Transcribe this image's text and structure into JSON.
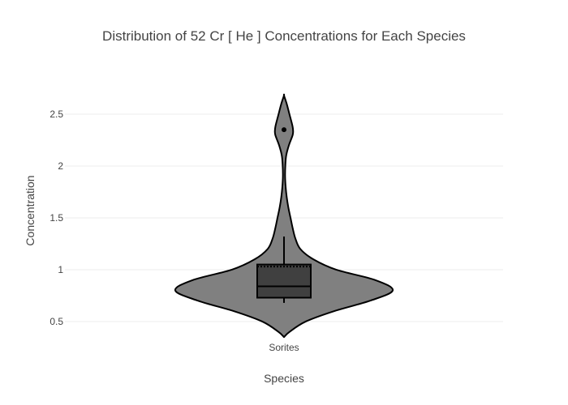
{
  "chart_data": {
    "type": "violin",
    "title": "Distribution of 52  Cr  [ He ]  Concentrations for Each Species",
    "xlabel": "Species",
    "ylabel": "Concentration",
    "categories": [
      "Sorites"
    ],
    "ylim": [
      0.32,
      2.82
    ],
    "yticks": [
      0.5,
      1,
      1.5,
      2,
      2.5
    ],
    "ytick_labels": [
      "0.5",
      "1",
      "1.5",
      "2",
      "2.5"
    ],
    "grid": true,
    "legend": "none",
    "colors": {
      "violin_fill": "#808080",
      "box_fill": "#404040",
      "line": "#000000",
      "grid": "#eeeeee",
      "text": "#444444"
    },
    "series": [
      {
        "category": "Sorites",
        "min": 0.68,
        "q1": 0.73,
        "median": 0.84,
        "q3": 1.05,
        "mean": 1.03,
        "upper_whisker": 1.32,
        "outliers": [
          2.35
        ],
        "range": [
          0.35,
          2.68
        ],
        "density_profile": [
          [
            0.35,
            0.0
          ],
          [
            0.4,
            0.05
          ],
          [
            0.5,
            0.2
          ],
          [
            0.6,
            0.46
          ],
          [
            0.7,
            0.79
          ],
          [
            0.8,
            1.0
          ],
          [
            0.9,
            0.84
          ],
          [
            1.0,
            0.48
          ],
          [
            1.1,
            0.27
          ],
          [
            1.2,
            0.15
          ],
          [
            1.3,
            0.105
          ],
          [
            1.4,
            0.08
          ],
          [
            1.5,
            0.06
          ],
          [
            1.6,
            0.04
          ],
          [
            1.7,
            0.025
          ],
          [
            1.8,
            0.015
          ],
          [
            1.9,
            0.01
          ],
          [
            2.0,
            0.012
          ],
          [
            2.1,
            0.02
          ],
          [
            2.2,
            0.045
          ],
          [
            2.3,
            0.08
          ],
          [
            2.35,
            0.083
          ],
          [
            2.4,
            0.075
          ],
          [
            2.5,
            0.05
          ],
          [
            2.6,
            0.025
          ],
          [
            2.68,
            0.0
          ]
        ]
      }
    ]
  }
}
